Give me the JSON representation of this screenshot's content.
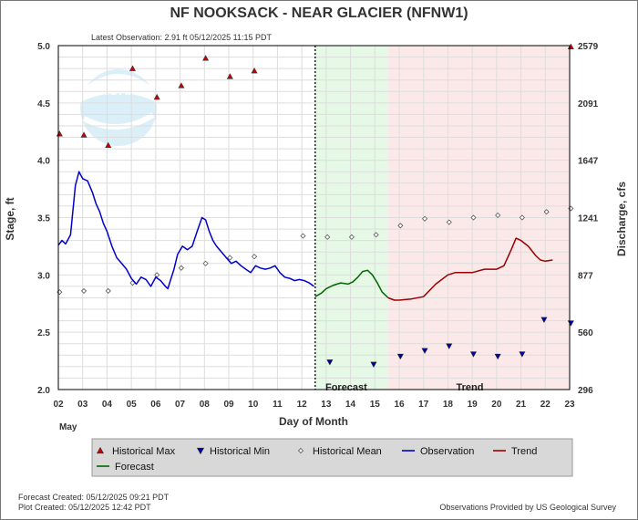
{
  "chart_data": {
    "type": "line",
    "title": "NF NOOKSACK - NEAR GLACIER  (NFNW1)",
    "subtitle": "Latest Observation: 2.91 ft 05/12/2025 11:15 PDT",
    "xlabel": "Day of Month",
    "xlabel_month": "May",
    "ylabel_left": "Stage, ft",
    "ylabel_right": "Discharge, cfs",
    "xlim": [
      2,
      23
    ],
    "ylim": [
      2.0,
      5.0
    ],
    "x_ticks": [
      "02",
      "03",
      "04",
      "05",
      "06",
      "07",
      "08",
      "09",
      "10",
      "11",
      "12",
      "13",
      "14",
      "15",
      "16",
      "17",
      "18",
      "19",
      "20",
      "21",
      "22",
      "23"
    ],
    "y_ticks_left": [
      "2.0",
      "2.5",
      "3.0",
      "3.5",
      "4.0",
      "4.5",
      "5.0"
    ],
    "y_ticks_right": [
      {
        "label": "296",
        "stage": 2.0
      },
      {
        "label": "560",
        "stage": 2.5
      },
      {
        "label": "877",
        "stage": 3.0
      },
      {
        "label": "1241",
        "stage": 3.5
      },
      {
        "label": "1647",
        "stage": 4.0
      },
      {
        "label": "2091",
        "stage": 4.5
      },
      {
        "label": "2579",
        "stage": 5.0
      }
    ],
    "grid": true,
    "forecast_start": 12.55,
    "trend_start": 15.55,
    "region_labels": {
      "forecast": "Forecast",
      "trend": "Trend"
    },
    "colors": {
      "observation": "#0000cc",
      "forecast": "#006600",
      "trend": "#990000",
      "historical_max": "#cc0000",
      "historical_min": "#0000aa",
      "forecast_bg": "#e6f8e6",
      "trend_bg": "#fbe9e9",
      "frame": "#000000",
      "legend_bg": "#d8d8d8"
    },
    "series": [
      {
        "name": "Observation",
        "x": [
          2.0,
          2.15,
          2.3,
          2.5,
          2.7,
          2.85,
          3.0,
          3.2,
          3.4,
          3.55,
          3.7,
          3.85,
          4.0,
          4.2,
          4.4,
          4.6,
          4.8,
          5.0,
          5.2,
          5.4,
          5.6,
          5.8,
          6.0,
          6.2,
          6.4,
          6.5,
          6.6,
          6.75,
          6.9,
          7.1,
          7.3,
          7.5,
          7.7,
          7.9,
          8.05,
          8.2,
          8.35,
          8.5,
          8.7,
          8.9,
          9.1,
          9.3,
          9.5,
          9.7,
          9.9,
          10.1,
          10.3,
          10.5,
          10.7,
          10.9,
          11.1,
          11.3,
          11.5,
          11.7,
          11.9,
          12.1,
          12.3,
          12.5
        ],
        "y": [
          3.26,
          3.3,
          3.27,
          3.35,
          3.78,
          3.9,
          3.84,
          3.82,
          3.72,
          3.62,
          3.55,
          3.45,
          3.38,
          3.25,
          3.15,
          3.1,
          3.05,
          2.97,
          2.92,
          2.98,
          2.96,
          2.9,
          2.98,
          2.95,
          2.9,
          2.88,
          2.95,
          3.05,
          3.18,
          3.25,
          3.22,
          3.25,
          3.38,
          3.5,
          3.48,
          3.38,
          3.3,
          3.25,
          3.2,
          3.15,
          3.1,
          3.12,
          3.08,
          3.05,
          3.02,
          3.08,
          3.06,
          3.05,
          3.06,
          3.08,
          3.02,
          2.98,
          2.97,
          2.95,
          2.96,
          2.95,
          2.93,
          2.9
        ]
      },
      {
        "name": "Forecast",
        "x": [
          12.55,
          12.8,
          13.0,
          13.3,
          13.6,
          13.9,
          14.1,
          14.3,
          14.5,
          14.7,
          14.9,
          15.1,
          15.3,
          15.55
        ],
        "y": [
          2.81,
          2.84,
          2.88,
          2.91,
          2.93,
          2.92,
          2.94,
          2.98,
          3.03,
          3.04,
          3.0,
          2.93,
          2.85,
          2.8
        ]
      },
      {
        "name": "Trend",
        "x": [
          15.55,
          15.8,
          16.0,
          16.5,
          17.0,
          17.5,
          18.0,
          18.3,
          18.6,
          19.0,
          19.5,
          20.0,
          20.3,
          20.6,
          20.8,
          21.0,
          21.3,
          21.6,
          21.8,
          22.0,
          22.3
        ],
        "y": [
          2.8,
          2.78,
          2.78,
          2.79,
          2.81,
          2.92,
          3.0,
          3.02,
          3.02,
          3.02,
          3.05,
          3.05,
          3.08,
          3.22,
          3.32,
          3.3,
          3.25,
          3.17,
          3.13,
          3.12,
          3.13
        ]
      }
    ],
    "markers": {
      "historical_max": {
        "x": [
          2.05,
          3.05,
          4.05,
          5.05,
          6.05,
          7.05,
          8.05,
          9.05,
          10.05,
          23.05
        ],
        "y": [
          4.23,
          4.22,
          4.13,
          4.8,
          4.55,
          4.65,
          4.89,
          4.73,
          4.78,
          4.99
        ]
      },
      "historical_min": {
        "x": [
          13.15,
          14.95,
          21.95,
          23.05
        ],
        "y": [
          2.24,
          2.22,
          2.61,
          2.58
        ]
      },
      "historical_min_inverted": {
        "x": [
          16.05,
          17.05,
          18.05,
          19.05,
          20.05,
          21.05
        ],
        "y": [
          2.29,
          2.34,
          2.38,
          2.31,
          2.29,
          2.31
        ]
      },
      "historical_mean": {
        "x": [
          2.05,
          3.05,
          4.05,
          5.05,
          6.05,
          7.05,
          8.05,
          9.05,
          10.05,
          12.05,
          13.05,
          14.05,
          15.05,
          16.05,
          17.05,
          18.05,
          19.05,
          20.05,
          21.05,
          22.05,
          23.05
        ],
        "y": [
          2.85,
          2.86,
          2.86,
          2.93,
          3.0,
          3.06,
          3.1,
          3.15,
          3.16,
          3.34,
          3.33,
          3.33,
          3.35,
          3.43,
          3.49,
          3.46,
          3.5,
          3.52,
          3.5,
          3.55,
          3.58
        ]
      }
    },
    "legend": {
      "placement": "bottom",
      "items": [
        {
          "label": "Historical Max",
          "symbol": "triangle-up",
          "color": "#cc0000"
        },
        {
          "label": "Historical Min",
          "symbol": "triangle-down",
          "color": "#0000aa"
        },
        {
          "label": "Historical Mean",
          "symbol": "diamond",
          "color": "#666666"
        },
        {
          "label": "Observation",
          "symbol": "line",
          "color": "#0000cc"
        },
        {
          "label": "Trend",
          "symbol": "line",
          "color": "#990000"
        },
        {
          "label": "Forecast",
          "symbol": "line",
          "color": "#006600"
        }
      ]
    }
  },
  "watermark": {
    "text": "NOAA"
  },
  "footer": {
    "forecast_created": "Forecast Created: 05/12/2025 09:21 PDT",
    "plot_created": "Plot Created: 05/12/2025 12:42 PDT",
    "credit": "Observations Provided by US Geological Survey"
  }
}
